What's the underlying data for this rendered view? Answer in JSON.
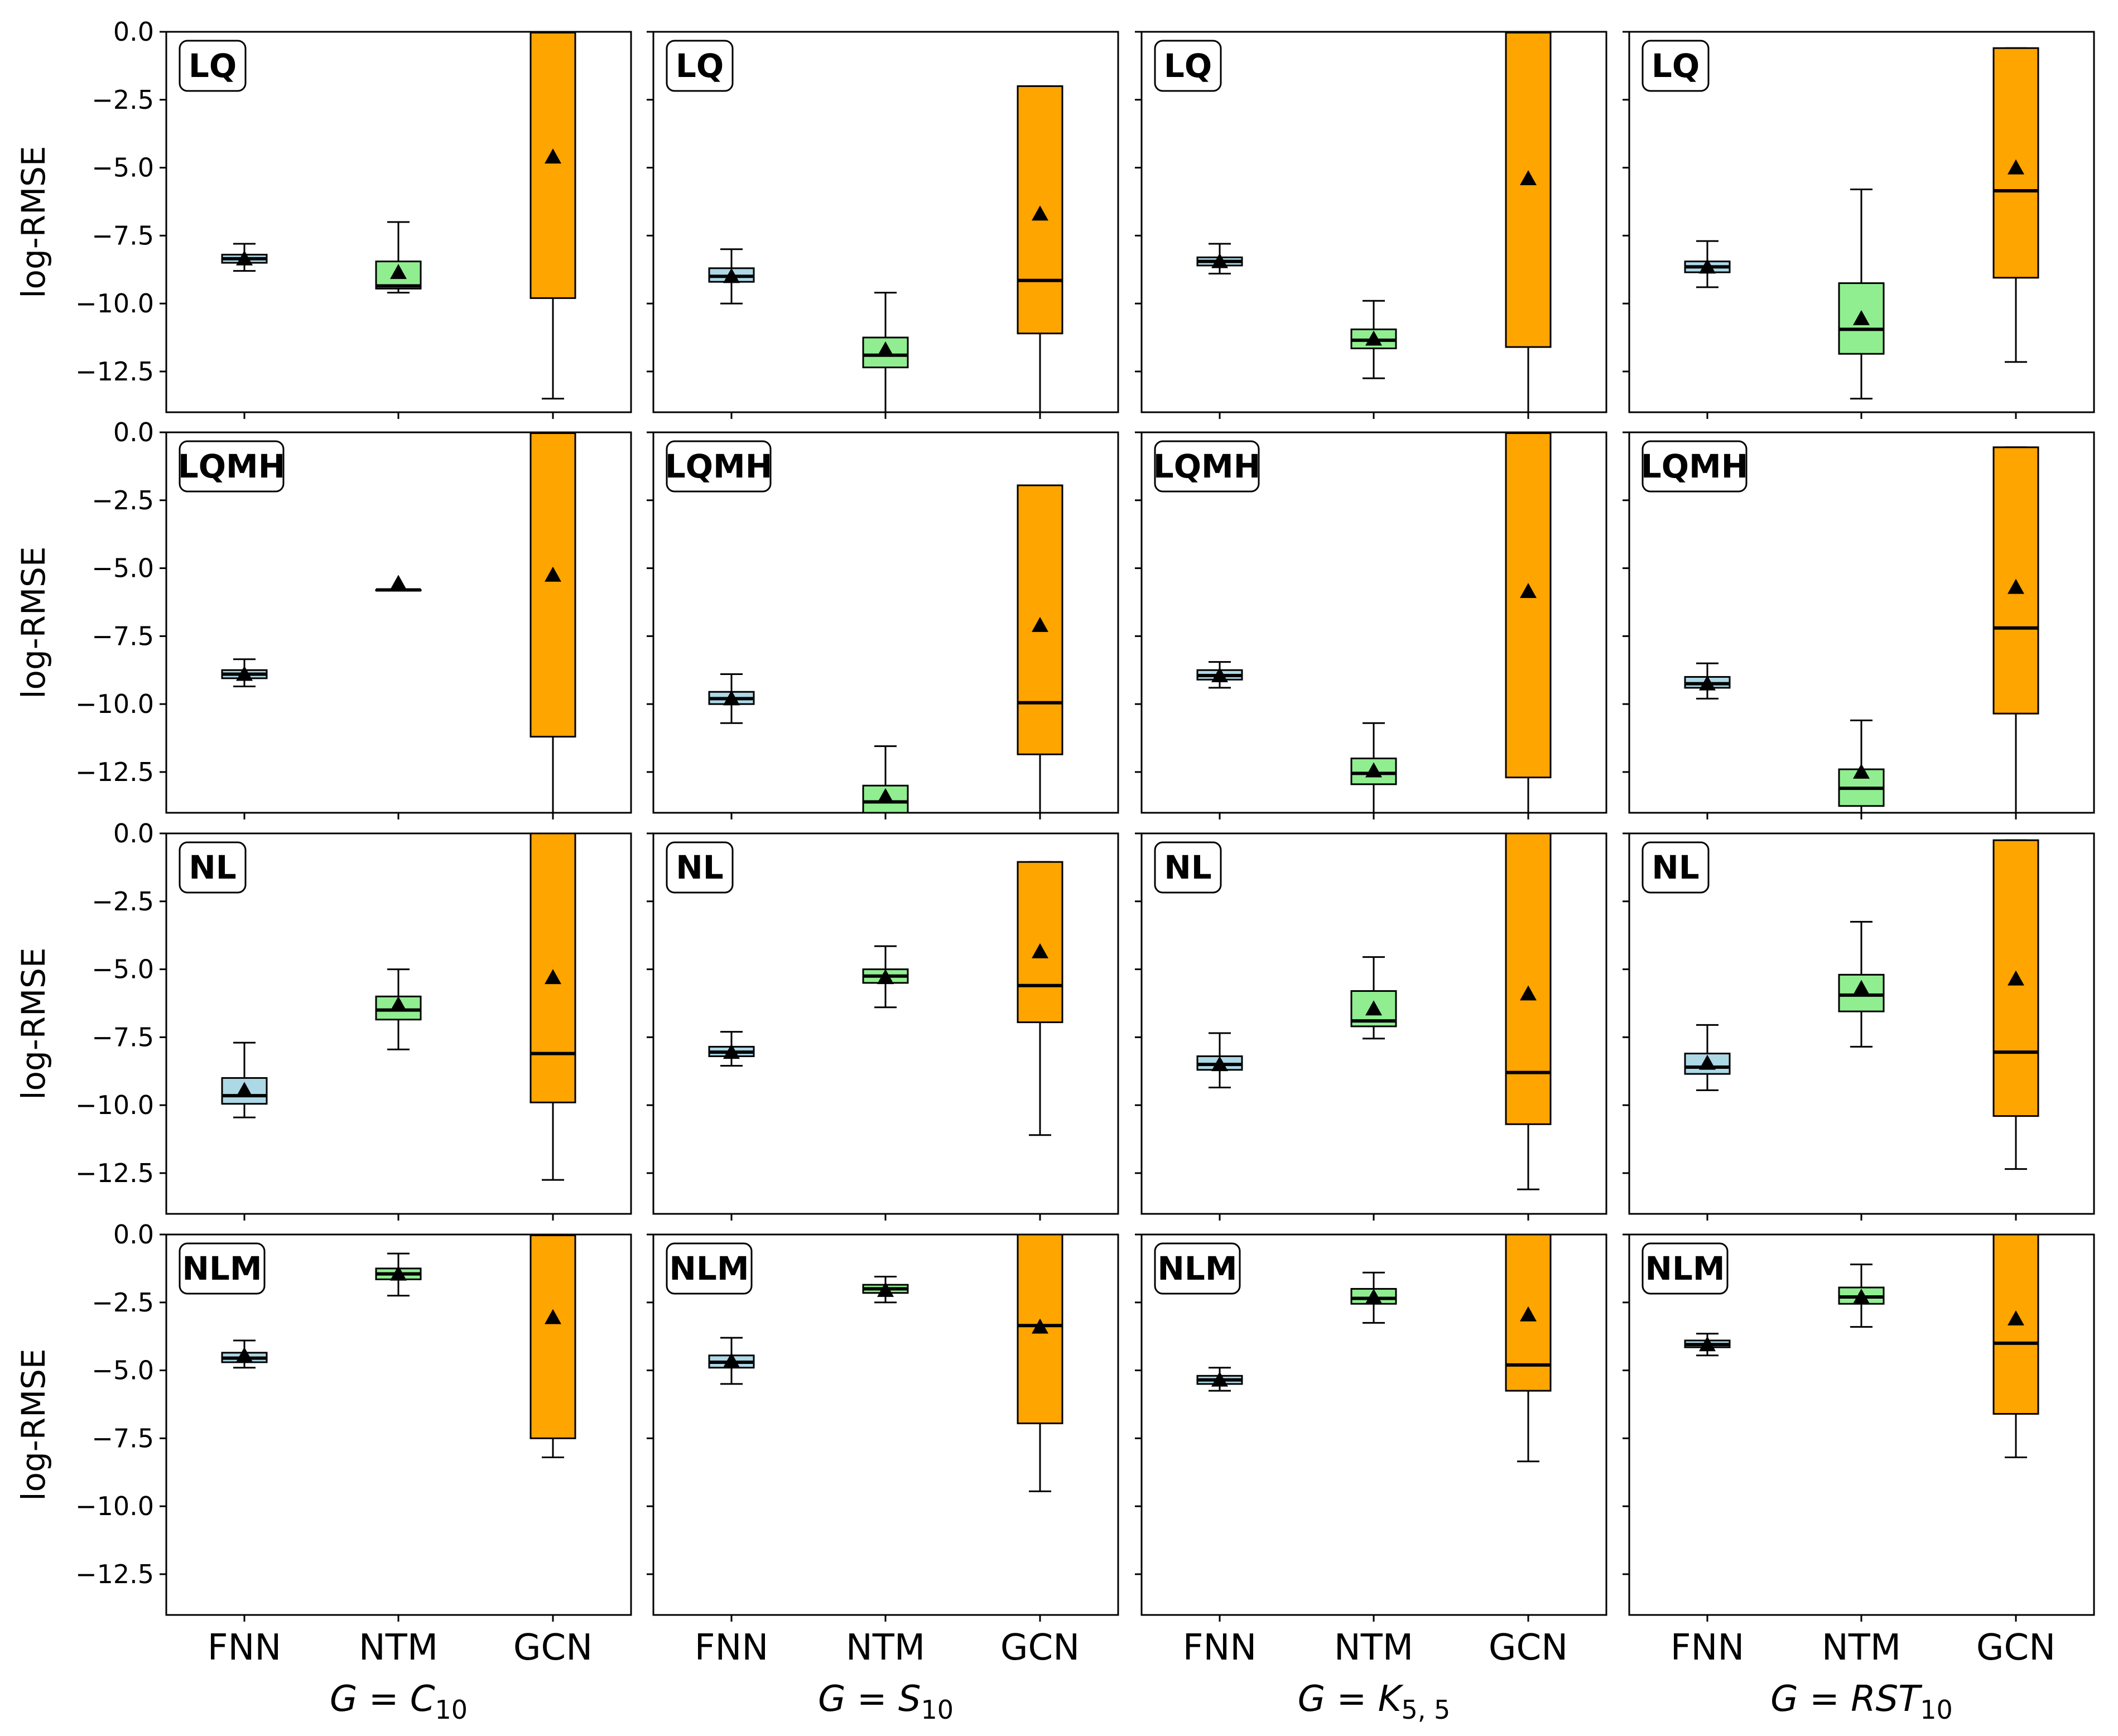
{
  "chart_data": {
    "type": "box",
    "ylabel": "log-RMSE",
    "ylim": [
      -14,
      0
    ],
    "yticks": [
      0,
      -2.5,
      -5,
      -7.5,
      -10,
      -12.5
    ],
    "ytick_labels": [
      "0.0",
      "−2.5",
      "−5.0",
      "−7.5",
      "−10.0",
      "−12.5"
    ],
    "categories": [
      "FNN",
      "NTM",
      "GCN"
    ],
    "category_colors": [
      "#add8e6",
      "#90ee90",
      "#ffa500"
    ],
    "columns": [
      {
        "graph_prefix": "G = ",
        "graph_main": "C",
        "graph_sub": "10"
      },
      {
        "graph_prefix": "G = ",
        "graph_main": "S",
        "graph_sub": "10"
      },
      {
        "graph_prefix": "G = ",
        "graph_main": "K",
        "graph_sub": "5, 5"
      },
      {
        "graph_prefix": "G = ",
        "graph_main": "RST",
        "graph_sub": "10"
      }
    ],
    "rows": [
      "LQ",
      "LQMH",
      "NL",
      "NLM"
    ],
    "panels": [
      [
        {
          "boxes": [
            {
              "whislo": -8.8,
              "q1": -8.5,
              "med": -8.35,
              "q3": -8.2,
              "whishi": -7.8,
              "mean": -8.35
            },
            {
              "whislo": -9.6,
              "q1": -9.45,
              "med": -9.35,
              "q3": -8.45,
              "whishi": -7.0,
              "mean": -8.85
            },
            {
              "whislo": -13.5,
              "q1": -9.8,
              "med": 0.0,
              "q3": 0.0,
              "whishi": 0.0,
              "mean": -4.6
            }
          ]
        },
        {
          "boxes": [
            {
              "whislo": -10.0,
              "q1": -9.2,
              "med": -9.0,
              "q3": -8.7,
              "whishi": -8.0,
              "mean": -9.0
            },
            {
              "whislo": -14.0,
              "q1": -12.35,
              "med": -11.9,
              "q3": -11.25,
              "whishi": -9.6,
              "mean": -11.7
            },
            {
              "whislo": -14.0,
              "q1": -11.1,
              "med": -9.15,
              "q3": -2.0,
              "whishi": -2.0,
              "mean": -6.7
            }
          ]
        },
        {
          "boxes": [
            {
              "whislo": -8.9,
              "q1": -8.6,
              "med": -8.45,
              "q3": -8.3,
              "whishi": -7.8,
              "mean": -8.45
            },
            {
              "whislo": -12.75,
              "q1": -11.65,
              "med": -11.35,
              "q3": -10.95,
              "whishi": -9.9,
              "mean": -11.3
            },
            {
              "whislo": -14.0,
              "q1": -11.6,
              "med": 0.0,
              "q3": 0.0,
              "whishi": 0.0,
              "mean": -5.4
            }
          ]
        },
        {
          "boxes": [
            {
              "whislo": -9.4,
              "q1": -8.85,
              "med": -8.65,
              "q3": -8.45,
              "whishi": -7.7,
              "mean": -8.65
            },
            {
              "whislo": -13.5,
              "q1": -11.85,
              "med": -10.95,
              "q3": -9.25,
              "whishi": -5.8,
              "mean": -10.55
            },
            {
              "whislo": -12.15,
              "q1": -9.05,
              "med": -5.85,
              "q3": -0.6,
              "whishi": -0.6,
              "mean": -5.0
            }
          ]
        }
      ],
      [
        {
          "boxes": [
            {
              "whislo": -9.35,
              "q1": -9.05,
              "med": -8.9,
              "q3": -8.75,
              "whishi": -8.35,
              "mean": -8.9
            },
            {
              "whislo": -5.8,
              "q1": -5.8,
              "med": -5.8,
              "q3": -5.8,
              "whishi": -5.8,
              "mean": -5.55
            },
            {
              "whislo": -14.0,
              "q1": -11.2,
              "med": 0.0,
              "q3": 0.0,
              "whishi": 0.0,
              "mean": -5.25
            }
          ]
        },
        {
          "boxes": [
            {
              "whislo": -10.7,
              "q1": -10.0,
              "med": -9.8,
              "q3": -9.55,
              "whishi": -8.9,
              "mean": -9.8
            },
            {
              "whislo": -14.0,
              "q1": -14.0,
              "med": -13.6,
              "q3": -13.0,
              "whishi": -11.55,
              "mean": -13.4
            },
            {
              "whislo": -14.0,
              "q1": -11.85,
              "med": -9.95,
              "q3": -1.95,
              "whishi": -1.95,
              "mean": -7.1
            }
          ]
        },
        {
          "boxes": [
            {
              "whislo": -9.4,
              "q1": -9.1,
              "med": -8.95,
              "q3": -8.75,
              "whishi": -8.45,
              "mean": -8.95
            },
            {
              "whislo": -14.0,
              "q1": -12.95,
              "med": -12.55,
              "q3": -12.0,
              "whishi": -10.7,
              "mean": -12.45
            },
            {
              "whislo": -14.0,
              "q1": -12.7,
              "med": 0.0,
              "q3": 0.0,
              "whishi": 0.0,
              "mean": -5.85
            }
          ]
        },
        {
          "boxes": [
            {
              "whislo": -9.8,
              "q1": -9.4,
              "med": -9.25,
              "q3": -9.0,
              "whishi": -8.5,
              "mean": -9.25
            },
            {
              "whislo": -14.0,
              "q1": -13.75,
              "med": -13.1,
              "q3": -12.4,
              "whishi": -10.6,
              "mean": -12.5
            },
            {
              "whislo": -14.0,
              "q1": -10.35,
              "med": -7.2,
              "q3": -0.55,
              "whishi": -0.55,
              "mean": -5.7
            }
          ]
        }
      ],
      [
        {
          "boxes": [
            {
              "whislo": -10.45,
              "q1": -9.95,
              "med": -9.65,
              "q3": -9.0,
              "whishi": -7.7,
              "mean": -9.45
            },
            {
              "whislo": -7.95,
              "q1": -6.85,
              "med": -6.5,
              "q3": -6.0,
              "whishi": -5.0,
              "mean": -6.3
            },
            {
              "whislo": -12.75,
              "q1": -9.9,
              "med": -8.1,
              "q3": 0.0,
              "whishi": 0.0,
              "mean": -5.3
            }
          ]
        },
        {
          "boxes": [
            {
              "whislo": -8.55,
              "q1": -8.2,
              "med": -8.05,
              "q3": -7.85,
              "whishi": -7.3,
              "mean": -8.05
            },
            {
              "whislo": -6.4,
              "q1": -5.5,
              "med": -5.25,
              "q3": -5.0,
              "whishi": -4.15,
              "mean": -5.3
            },
            {
              "whislo": -11.1,
              "q1": -6.95,
              "med": -5.6,
              "q3": -1.05,
              "whishi": -1.05,
              "mean": -4.35
            }
          ]
        },
        {
          "boxes": [
            {
              "whislo": -9.35,
              "q1": -8.7,
              "med": -8.5,
              "q3": -8.2,
              "whishi": -7.35,
              "mean": -8.5
            },
            {
              "whislo": -7.55,
              "q1": -7.1,
              "med": -6.9,
              "q3": -5.8,
              "whishi": -4.55,
              "mean": -6.45
            },
            {
              "whislo": -13.1,
              "q1": -10.7,
              "med": -8.8,
              "q3": 0.0,
              "whishi": 0.0,
              "mean": -5.9
            }
          ]
        },
        {
          "boxes": [
            {
              "whislo": -9.45,
              "q1": -8.85,
              "med": -8.6,
              "q3": -8.1,
              "whishi": -7.05,
              "mean": -8.45
            },
            {
              "whislo": -7.85,
              "q1": -6.55,
              "med": -5.95,
              "q3": -5.2,
              "whishi": -3.25,
              "mean": -5.7
            },
            {
              "whislo": -12.35,
              "q1": -10.4,
              "med": -8.05,
              "q3": -0.25,
              "whishi": -0.25,
              "mean": -5.35
            }
          ]
        }
      ],
      [
        {
          "boxes": [
            {
              "whislo": -4.9,
              "q1": -4.7,
              "med": -4.55,
              "q3": -4.35,
              "whishi": -3.9,
              "mean": -4.45
            },
            {
              "whislo": -2.25,
              "q1": -1.65,
              "med": -1.45,
              "q3": -1.25,
              "whishi": -0.7,
              "mean": -1.45
            },
            {
              "whislo": -8.2,
              "q1": -7.5,
              "med": 0.0,
              "q3": 0.0,
              "whishi": 0.0,
              "mean": -3.05
            }
          ]
        },
        {
          "boxes": [
            {
              "whislo": -5.5,
              "q1": -4.9,
              "med": -4.7,
              "q3": -4.45,
              "whishi": -3.8,
              "mean": -4.65
            },
            {
              "whislo": -2.5,
              "q1": -2.15,
              "med": -2.0,
              "q3": -1.85,
              "whishi": -1.55,
              "mean": -2.05
            },
            {
              "whislo": -9.45,
              "q1": -6.95,
              "med": -3.35,
              "q3": 0.0,
              "whishi": 0.0,
              "mean": -3.4
            }
          ]
        },
        {
          "boxes": [
            {
              "whislo": -5.75,
              "q1": -5.5,
              "med": -5.35,
              "q3": -5.2,
              "whishi": -4.9,
              "mean": -5.35
            },
            {
              "whislo": -3.25,
              "q1": -2.55,
              "med": -2.35,
              "q3": -2.0,
              "whishi": -1.4,
              "mean": -2.3
            },
            {
              "whislo": -8.35,
              "q1": -5.75,
              "med": -4.8,
              "q3": 0.0,
              "whishi": 0.0,
              "mean": -2.95
            }
          ]
        },
        {
          "boxes": [
            {
              "whislo": -4.45,
              "q1": -4.15,
              "med": -4.05,
              "q3": -3.9,
              "whishi": -3.65,
              "mean": -4.05
            },
            {
              "whislo": -3.4,
              "q1": -2.55,
              "med": -2.3,
              "q3": -1.95,
              "whishi": -1.1,
              "mean": -2.3
            },
            {
              "whislo": -8.2,
              "q1": -6.6,
              "med": -4.0,
              "q3": 0.0,
              "whishi": 0.0,
              "mean": -3.1
            }
          ]
        }
      ]
    ]
  }
}
